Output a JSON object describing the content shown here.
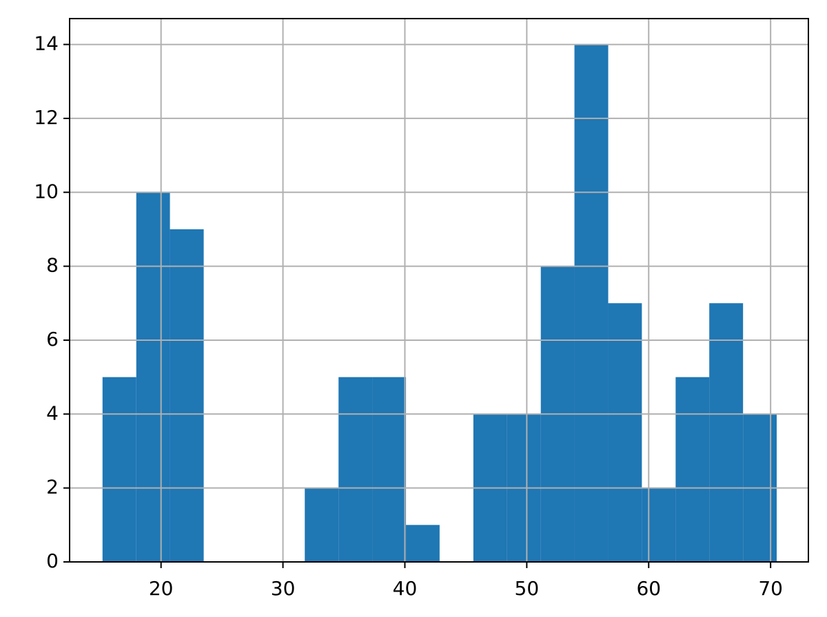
{
  "chart_data": {
    "type": "histogram",
    "bins": [
      15.2,
      17.97,
      20.73,
      23.5,
      26.26,
      29.03,
      31.79,
      34.56,
      37.32,
      40.09,
      42.85,
      45.62,
      48.38,
      51.15,
      53.91,
      56.68,
      59.44,
      62.21,
      64.97,
      67.74,
      70.5
    ],
    "counts": [
      5,
      10,
      9,
      0,
      0,
      0,
      2,
      5,
      5,
      1,
      0,
      4,
      4,
      8,
      14,
      7,
      2,
      5,
      7,
      4
    ],
    "color": "#1f77b4",
    "xlim": [
      12.5,
      73.1
    ],
    "xticks": [
      20,
      30,
      40,
      50,
      60,
      70
    ],
    "ylim": [
      0,
      14.7
    ],
    "yticks": [
      0,
      2,
      4,
      6,
      8,
      10,
      12,
      14
    ],
    "grid": true
  }
}
